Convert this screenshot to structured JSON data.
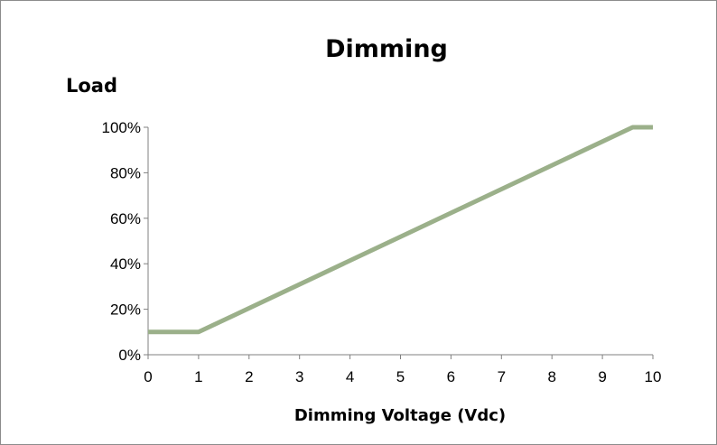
{
  "chart_data": {
    "type": "line",
    "title": "Dimming",
    "ylabel": "Load",
    "xlabel": "Dimming Voltage (Vdc)",
    "x_ticks": [
      "0",
      "1",
      "2",
      "3",
      "4",
      "5",
      "6",
      "7",
      "8",
      "9",
      "10"
    ],
    "y_ticks": [
      "0%",
      "20%",
      "40%",
      "60%",
      "80%",
      "100%"
    ],
    "xlim": [
      0,
      10
    ],
    "ylim": [
      0,
      100
    ],
    "grid": false,
    "legend": "none",
    "series": [
      {
        "color": "#9bb08a",
        "points": [
          {
            "x": 0,
            "y": 10
          },
          {
            "x": 1,
            "y": 10
          },
          {
            "x": 9.6,
            "y": 100
          },
          {
            "x": 10,
            "y": 100
          }
        ]
      }
    ]
  }
}
